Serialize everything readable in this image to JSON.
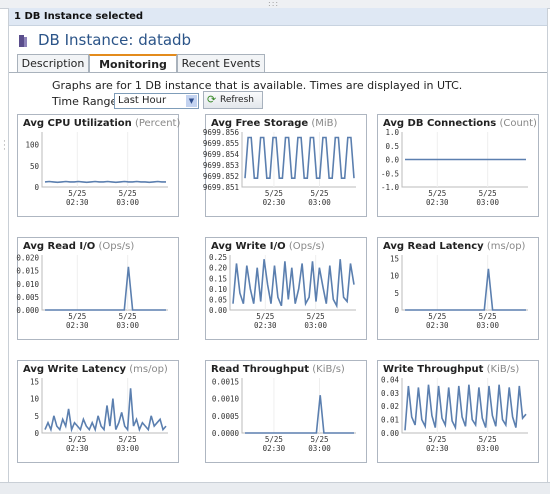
{
  "selection_label": "1 DB Instance selected",
  "instance_title": "DB Instance: datadb",
  "tabs": [
    {
      "label": "Description",
      "active": false
    },
    {
      "label": "Monitoring",
      "active": true
    },
    {
      "label": "Recent Events",
      "active": false
    }
  ],
  "info_text": "Graphs are for 1 DB instance that is available. Times are displayed in UTC.",
  "time_range": {
    "label": "Time Range:",
    "value": "Last Hour"
  },
  "refresh_label": "Refresh",
  "colors": {
    "series": "#5b7faf",
    "accent_tab": "#e38b1c",
    "title": "#2b5488"
  },
  "chart_data": [
    {
      "type": "line",
      "title": "Avg CPU Utilization",
      "unit": "(Percent)",
      "ylim": [
        0,
        130
      ],
      "yticks": [
        "100",
        "50",
        "0"
      ],
      "ytick_values": [
        100,
        50,
        0
      ],
      "xticks": [
        "5/25\n02:30",
        "5/25\n03:00"
      ],
      "values": [
        12,
        13,
        12,
        11,
        12,
        13,
        12,
        12,
        13,
        12,
        11,
        12,
        13,
        12,
        12,
        13,
        12,
        11,
        12,
        13,
        12,
        12,
        13,
        12,
        12,
        11,
        12,
        13,
        12,
        12
      ]
    },
    {
      "type": "line",
      "title": "Avg Free Storage",
      "unit": "(MiB)",
      "ylim": [
        9699.851,
        9699.856
      ],
      "yticks": [
        "9699.856",
        "9699.855",
        "9699.854",
        "9699.853",
        "9699.852",
        "9699.851"
      ],
      "ytick_values": [
        9699.856,
        9699.855,
        9699.854,
        9699.853,
        9699.852,
        9699.851
      ],
      "xticks": [
        "5/25\n02:30",
        "5/25\n03:00"
      ],
      "values": [
        9699.8518,
        9699.8555,
        9699.8555,
        9699.8518,
        9699.8518,
        9699.8555,
        9699.8555,
        9699.8518,
        9699.8518,
        9699.8555,
        9699.8555,
        9699.8518,
        9699.8518,
        9699.8555,
        9699.8555,
        9699.8518,
        9699.8518,
        9699.8555,
        9699.8555,
        9699.8518,
        9699.8518,
        9699.8555,
        9699.8555,
        9699.8518,
        9699.8518,
        9699.8555,
        9699.8555,
        9699.8518,
        9699.8518,
        9699.8555,
        9699.8555,
        9699.8518,
        9699.8518,
        9699.8555,
        9699.8555,
        9699.8518
      ]
    },
    {
      "type": "line",
      "title": "Avg DB Connections",
      "unit": "(Count)",
      "ylim": [
        -1.0,
        1.0
      ],
      "yticks": [
        "1.0",
        "0.5",
        "0.0",
        "-0.5",
        "-1.0"
      ],
      "ytick_values": [
        1.0,
        0.5,
        0.0,
        -0.5,
        -1.0
      ],
      "xticks": [
        "5/25\n02:30",
        "5/25\n03:00"
      ],
      "values": [
        0,
        0,
        0,
        0,
        0,
        0,
        0,
        0,
        0,
        0,
        0,
        0,
        0,
        0,
        0,
        0,
        0,
        0,
        0,
        0
      ]
    },
    {
      "type": "line",
      "title": "Avg Read I/O",
      "unit": "(Ops/s)",
      "ylim": [
        0,
        0.021
      ],
      "yticks": [
        "0.020",
        "0.015",
        "0.010",
        "0.005",
        "0.000"
      ],
      "ytick_values": [
        0.02,
        0.015,
        0.01,
        0.005,
        0.0
      ],
      "xticks": [
        "5/25\n02:30",
        "5/25\n03:00"
      ],
      "values": [
        0,
        0,
        0,
        0,
        0,
        0,
        0,
        0,
        0,
        0,
        0,
        0,
        0,
        0,
        0,
        0,
        0,
        0,
        0,
        0,
        0.0165,
        0,
        0,
        0,
        0,
        0,
        0,
        0,
        0,
        0
      ]
    },
    {
      "type": "line",
      "title": "Avg Write I/O",
      "unit": "(Ops/s)",
      "ylim": [
        0,
        0.26
      ],
      "yticks": [
        "0.25",
        "0.20",
        "0.15",
        "0.10",
        "0.05",
        "0.00"
      ],
      "ytick_values": [
        0.25,
        0.2,
        0.15,
        0.1,
        0.05,
        0.0
      ],
      "xticks": [
        "5/25\n02:30",
        "5/25\n03:00"
      ],
      "values": [
        0.03,
        0.22,
        0.08,
        0.03,
        0.21,
        0.1,
        0.03,
        0.2,
        0.04,
        0.24,
        0.12,
        0.03,
        0.21,
        0.06,
        0.02,
        0.23,
        0.05,
        0.2,
        0.03,
        0.1,
        0.22,
        0.03,
        0.06,
        0.23,
        0.04,
        0.2,
        0.11,
        0.03,
        0.21,
        0.05,
        0.02,
        0.24,
        0.06,
        0.04,
        0.22,
        0.12
      ]
    },
    {
      "type": "line",
      "title": "Avg Read Latency",
      "unit": "(ms/op)",
      "ylim": [
        0,
        16
      ],
      "yticks": [
        "15",
        "10",
        "5",
        "0"
      ],
      "ytick_values": [
        15,
        10,
        5,
        0
      ],
      "xticks": [
        "5/25\n02:30",
        "5/25\n03:00"
      ],
      "values": [
        0,
        0,
        0,
        0,
        0,
        0,
        0,
        0,
        0,
        0,
        0,
        0,
        0,
        0,
        0,
        0,
        0,
        0,
        0,
        0,
        12,
        0,
        0,
        0,
        0,
        0,
        0,
        0,
        0,
        0
      ]
    },
    {
      "type": "line",
      "title": "Avg Write Latency",
      "unit": "(ms/op)",
      "ylim": [
        0,
        16
      ],
      "yticks": [
        "15",
        "10",
        "5",
        "0"
      ],
      "ytick_values": [
        15,
        10,
        5,
        0
      ],
      "xticks": [
        "5/25\n02:30",
        "5/25\n03:00"
      ],
      "values": [
        1,
        3,
        1,
        5,
        2,
        1,
        4,
        2,
        7,
        1,
        3,
        2,
        1,
        4,
        2,
        1,
        3,
        1,
        5,
        2,
        1,
        8,
        2,
        10,
        1,
        3,
        6,
        2,
        1,
        13,
        2,
        4,
        1,
        3,
        2,
        1,
        5,
        2,
        3,
        4,
        1,
        2
      ]
    },
    {
      "type": "line",
      "title": "Read Throughput",
      "unit": "(KiB/s)",
      "ylim": [
        0,
        0.0016
      ],
      "yticks": [
        "0.0015",
        "0.0010",
        "0.0005",
        "0.0000"
      ],
      "ytick_values": [
        0.0015,
        0.001,
        0.0005,
        0.0
      ],
      "xticks": [
        "5/25\n02:30",
        "5/25\n03:00"
      ],
      "values": [
        0,
        0,
        0,
        0,
        0,
        0,
        0,
        0,
        0,
        0,
        0,
        0,
        0,
        0,
        0,
        0,
        0,
        0,
        0,
        0,
        0.0011,
        0,
        0,
        0,
        0,
        0,
        0,
        0,
        0,
        0
      ]
    },
    {
      "type": "line",
      "title": "Write Throughput",
      "unit": "(KiB/s)",
      "ylim": [
        0,
        0.041
      ],
      "yticks": [
        "0.04",
        "0.03",
        "0.02",
        "0.01",
        "0.00"
      ],
      "ytick_values": [
        0.04,
        0.03,
        0.02,
        0.01,
        0.0
      ],
      "xticks": [
        "5/25\n02:30",
        "5/25\n03:00"
      ],
      "values": [
        0.002,
        0.035,
        0.012,
        0.006,
        0.034,
        0.01,
        0.005,
        0.036,
        0.013,
        0.004,
        0.035,
        0.011,
        0.006,
        0.034,
        0.009,
        0.004,
        0.035,
        0.012,
        0.005,
        0.036,
        0.01,
        0.006,
        0.034,
        0.011,
        0.004,
        0.035,
        0.013,
        0.005,
        0.036,
        0.01,
        0.006,
        0.034,
        0.012,
        0.004,
        0.035,
        0.011,
        0.014
      ]
    }
  ]
}
